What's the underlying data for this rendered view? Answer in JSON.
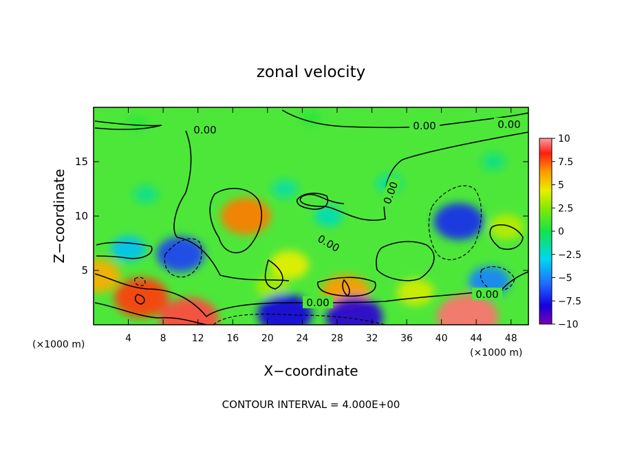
{
  "chart_data": {
    "type": "heatmap",
    "title": "zonal velocity",
    "xlabel": "X−coordinate",
    "ylabel": "Z−coordinate",
    "x_unit_left": "(×1000 m)",
    "x_unit_right": "(×1000 m)",
    "xlim": [
      0,
      50
    ],
    "ylim": [
      0,
      20
    ],
    "x_ticks": [
      4,
      8,
      12,
      16,
      20,
      24,
      28,
      32,
      36,
      40,
      44,
      48
    ],
    "y_ticks": [
      5,
      10,
      15
    ],
    "colorbar": {
      "ticks": [
        "10",
        "7.5",
        "5",
        "2.5",
        "0",
        "−2.5",
        "−5",
        "−7.5",
        "−10"
      ],
      "range": [
        -10,
        10
      ]
    },
    "contour_labels": [
      "0.00",
      "0.00",
      "0.00",
      "0.00",
      "0.00",
      "0.00",
      "0.00"
    ],
    "features": [
      {
        "x": 17.5,
        "z": 10.0,
        "value": 7.0
      },
      {
        "x": 29.0,
        "z": 3.0,
        "value": 6.5
      },
      {
        "x": 5.5,
        "z": 2.5,
        "value": 8.0
      },
      {
        "x": 11.0,
        "z": 0.5,
        "value": 9.0
      },
      {
        "x": 43.0,
        "z": 0.7,
        "value": 9.5
      },
      {
        "x": 0.5,
        "z": 4.5,
        "value": 6.0
      },
      {
        "x": 22.5,
        "z": 5.5,
        "value": 4.5
      },
      {
        "x": 20.5,
        "z": 3.5,
        "value": 3.0
      },
      {
        "x": 47.5,
        "z": 9.0,
        "value": 3.5
      },
      {
        "x": 37.0,
        "z": 3.0,
        "value": 4.0
      },
      {
        "x": 42.0,
        "z": 9.5,
        "value": -7.0
      },
      {
        "x": 10.0,
        "z": 6.5,
        "value": -6.5
      },
      {
        "x": 45.5,
        "z": 4.0,
        "value": -5.0
      },
      {
        "x": 22.0,
        "z": 1.0,
        "value": -8.0
      },
      {
        "x": 30.0,
        "z": 0.7,
        "value": -8.5
      },
      {
        "x": 4.0,
        "z": 7.0,
        "value": -3.5
      },
      {
        "x": 27.0,
        "z": 10.0,
        "value": -2.0
      },
      {
        "x": 22.0,
        "z": 12.5,
        "value": -1.5
      },
      {
        "x": 34.0,
        "z": 13.0,
        "value": -1.5
      },
      {
        "x": 46.0,
        "z": 15.0,
        "value": -1.0
      },
      {
        "x": 6.0,
        "z": 12.0,
        "value": -1.2
      },
      {
        "x": 25.0,
        "z": 19.0,
        "value": 0.5
      },
      {
        "x": 5.0,
        "z": 18.5,
        "value": 0.5
      }
    ],
    "footer": "CONTOUR INTERVAL = 4.000E+00"
  }
}
